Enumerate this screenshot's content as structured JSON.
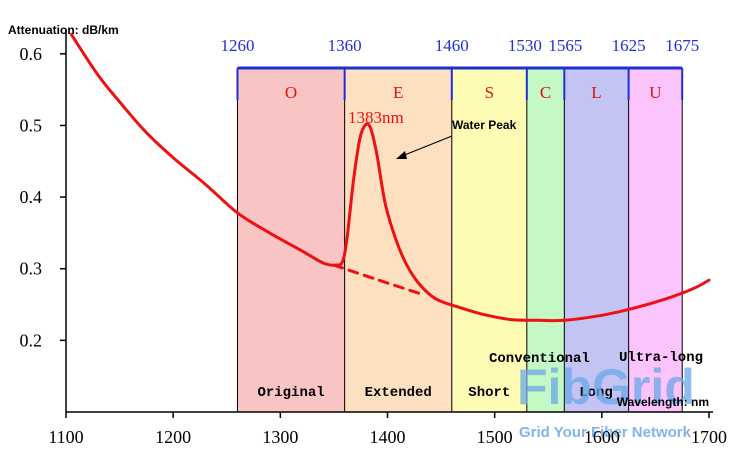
{
  "chart_data": {
    "type": "line",
    "ylabel": "Attenuation: dB/km",
    "xlabel": "Wavelength: nm",
    "xlim": [
      1100,
      1700
    ],
    "ylim": [
      0.1,
      0.65
    ],
    "x_ticks": [
      1100,
      1200,
      1300,
      1400,
      1500,
      1600,
      1700
    ],
    "y_ticks": [
      0.2,
      0.3,
      0.4,
      0.5,
      0.6
    ],
    "y_tick_labels": [
      "0.2",
      "0.3",
      "0.4",
      "0.5",
      "0.6"
    ],
    "band_boundaries": [
      1260,
      1360,
      1460,
      1530,
      1565,
      1625,
      1675
    ],
    "bands": [
      {
        "letter": "O",
        "name": "Original",
        "start": 1260,
        "end": 1360,
        "color": "#f8c4c4"
      },
      {
        "letter": "E",
        "name": "Extended",
        "start": 1360,
        "end": 1460,
        "color": "#fde0c0"
      },
      {
        "letter": "S",
        "name": "Short",
        "start": 1460,
        "end": 1530,
        "color": "#fefcb4"
      },
      {
        "letter": "C",
        "name": "Conventional",
        "start": 1530,
        "end": 1565,
        "color": "#c4f8c4"
      },
      {
        "letter": "L",
        "name": "Long",
        "start": 1565,
        "end": 1625,
        "color": "#c4c4f4"
      },
      {
        "letter": "U",
        "name": "Ultra-long",
        "start": 1625,
        "end": 1675,
        "color": "#fcc4fc"
      }
    ],
    "series": [
      {
        "color": "#ee1111",
        "style": "solid",
        "points": [
          [
            1105,
            0.627
          ],
          [
            1130,
            0.57
          ],
          [
            1150,
            0.533
          ],
          [
            1175,
            0.49
          ],
          [
            1200,
            0.455
          ],
          [
            1230,
            0.418
          ],
          [
            1260,
            0.378
          ],
          [
            1290,
            0.35
          ],
          [
            1320,
            0.325
          ],
          [
            1340,
            0.308
          ],
          [
            1352,
            0.305
          ],
          [
            1358,
            0.31
          ],
          [
            1362,
            0.34
          ],
          [
            1368,
            0.42
          ],
          [
            1374,
            0.48
          ],
          [
            1379,
            0.5
          ],
          [
            1384,
            0.497
          ],
          [
            1390,
            0.46
          ],
          [
            1398,
            0.39
          ],
          [
            1408,
            0.34
          ],
          [
            1418,
            0.305
          ],
          [
            1430,
            0.278
          ],
          [
            1445,
            0.258
          ],
          [
            1465,
            0.247
          ],
          [
            1490,
            0.236
          ],
          [
            1515,
            0.229
          ],
          [
            1540,
            0.228
          ],
          [
            1565,
            0.228
          ],
          [
            1600,
            0.235
          ],
          [
            1630,
            0.245
          ],
          [
            1660,
            0.258
          ],
          [
            1685,
            0.272
          ],
          [
            1700,
            0.284
          ]
        ]
      },
      {
        "color": "#ee1111",
        "style": "dashed",
        "points": [
          [
            1350,
            0.305
          ],
          [
            1390,
            0.285
          ],
          [
            1435,
            0.263
          ]
        ]
      }
    ],
    "annotations": {
      "peak_label": "1383nm",
      "peak_x": 1383,
      "peak_y": 0.5,
      "water_peak": "Water Peak"
    }
  },
  "colors": {
    "curve": "#ee1111",
    "band_outline": "#1f2fd6",
    "boundary_labels": "#1f2fd6",
    "band_letters": "#dd1111",
    "watermark": "#6aa8e8"
  },
  "watermark": {
    "brand": "FibGrid",
    "tagline": "Grid Your Fiber Network"
  }
}
